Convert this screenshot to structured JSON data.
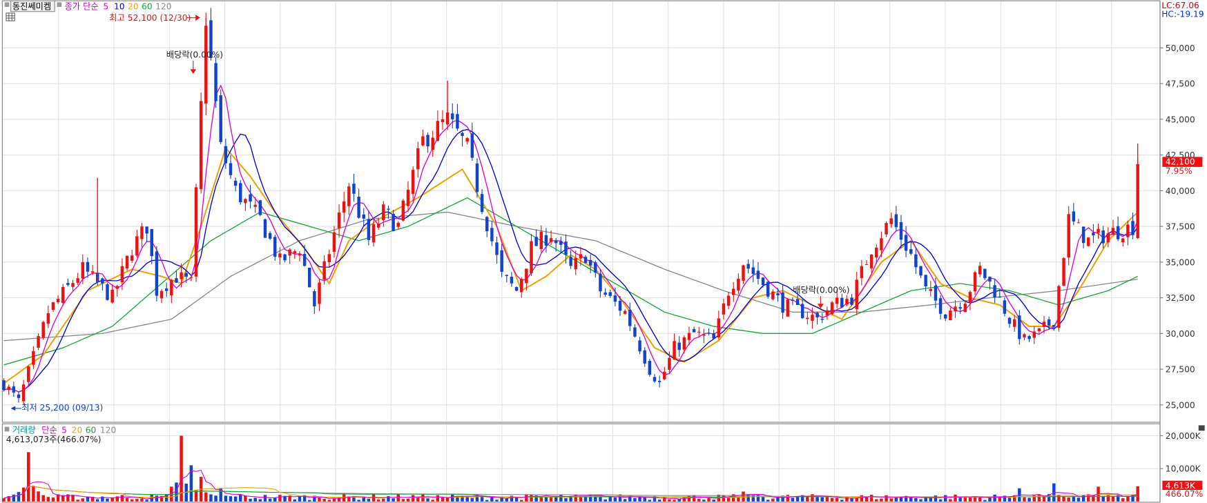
{
  "header": {
    "stock_name": "동진쎄미켐",
    "ma_title": "종가 단순",
    "ma_periods": [
      "5",
      "10",
      "20",
      "60",
      "120"
    ],
    "lc": "LC:67.06",
    "hc": "HC:-19.19"
  },
  "price": {
    "current": "42,100",
    "change": "7.95%",
    "high_label": "최고 52,100 (12/30)",
    "low_label": "최저 25,200 (09/13)",
    "dividend_label": "배당락(0.00%)"
  },
  "volume": {
    "title": "거래량",
    "ma_title": "단순",
    "ma_periods": [
      "5",
      "20",
      "60",
      "120"
    ],
    "current_text": "4,613,073주(466.07%)",
    "badge": "4,613K",
    "badge_pct": "466.07%"
  },
  "colors": {
    "up": "#ee1111",
    "down": "#1144cc",
    "ma5": "#dd00dd",
    "ma10": "#0000dd",
    "ma20": "#f0a000",
    "ma60": "#11aa33",
    "ma120": "#888888"
  },
  "chart_data": [
    {
      "type": "candlestick",
      "y_axis_labels": [
        "50,000",
        "47,500",
        "45,000",
        "42,500",
        "40,000",
        "37,500",
        "35,000",
        "32,500",
        "30,000",
        "27,500",
        "25,000"
      ],
      "y_values": [
        50000,
        47500,
        45000,
        42500,
        40000,
        37500,
        35000,
        32500,
        30000,
        27500,
        25000
      ],
      "ylim": [
        24000,
        52600
      ],
      "close_path": [
        [
          0,
          26500
        ],
        [
          3,
          25200
        ],
        [
          9,
          31500
        ],
        [
          16,
          34500
        ],
        [
          22,
          32500
        ],
        [
          26,
          36000
        ],
        [
          29,
          37500
        ],
        [
          31,
          33000
        ],
        [
          35,
          34000
        ],
        [
          38,
          33500
        ],
        [
          41,
          52100
        ],
        [
          44,
          43000
        ],
        [
          47,
          40000
        ],
        [
          52,
          38000
        ],
        [
          56,
          35000
        ],
        [
          60,
          36000
        ],
        [
          63,
          32000
        ],
        [
          67,
          37000
        ],
        [
          70,
          40500
        ],
        [
          74,
          36500
        ],
        [
          77,
          38500
        ],
        [
          80,
          37500
        ],
        [
          85,
          43500
        ],
        [
          90,
          45000
        ],
        [
          94,
          43000
        ],
        [
          97,
          39000
        ],
        [
          101,
          34000
        ],
        [
          104,
          33000
        ],
        [
          107,
          36000
        ],
        [
          111,
          37000
        ],
        [
          115,
          34500
        ],
        [
          118,
          35500
        ],
        [
          121,
          33000
        ],
        [
          126,
          31500
        ],
        [
          131,
          27500
        ],
        [
          133,
          26500
        ],
        [
          136,
          29000
        ],
        [
          140,
          30000
        ],
        [
          144,
          29500
        ],
        [
          147,
          33000
        ],
        [
          150,
          35000
        ],
        [
          154,
          33500
        ],
        [
          158,
          32000
        ],
        [
          162,
          31500
        ],
        [
          165,
          31000
        ],
        [
          168,
          32000
        ],
        [
          172,
          32500
        ],
        [
          176,
          36000
        ],
        [
          180,
          38000
        ],
        [
          184,
          35500
        ],
        [
          187,
          33000
        ],
        [
          191,
          31500
        ],
        [
          195,
          32500
        ],
        [
          198,
          34500
        ],
        [
          201,
          33000
        ],
        [
          204,
          31000
        ],
        [
          207,
          29500
        ],
        [
          210,
          30000
        ],
        [
          213,
          31000
        ],
        [
          216,
          38000
        ],
        [
          220,
          36500
        ],
        [
          224,
          37000
        ],
        [
          229,
          37500
        ],
        [
          230,
          42100
        ]
      ],
      "ma_paths": {
        "ma20": [
          [
            0,
            26500
          ],
          [
            8,
            28500
          ],
          [
            17,
            33000
          ],
          [
            26,
            34500
          ],
          [
            32,
            34000
          ],
          [
            36,
            33500
          ],
          [
            40,
            37500
          ],
          [
            45,
            43000
          ],
          [
            50,
            41000
          ],
          [
            55,
            38500
          ],
          [
            62,
            35500
          ],
          [
            66,
            33500
          ],
          [
            70,
            36500
          ],
          [
            76,
            38000
          ],
          [
            84,
            39500
          ],
          [
            93,
            41500
          ],
          [
            100,
            37500
          ],
          [
            105,
            33000
          ],
          [
            110,
            34000
          ],
          [
            115,
            35500
          ],
          [
            120,
            34500
          ],
          [
            125,
            32500
          ],
          [
            132,
            29000
          ],
          [
            138,
            28000
          ],
          [
            145,
            29500
          ],
          [
            152,
            32500
          ],
          [
            158,
            33000
          ],
          [
            164,
            32000
          ],
          [
            170,
            31000
          ],
          [
            178,
            35000
          ],
          [
            184,
            36500
          ],
          [
            190,
            33500
          ],
          [
            196,
            32500
          ],
          [
            202,
            32000
          ],
          [
            208,
            30500
          ],
          [
            213,
            30500
          ],
          [
            218,
            33000
          ],
          [
            224,
            36500
          ],
          [
            230,
            38500
          ]
        ],
        "ma60": [
          [
            0,
            27800
          ],
          [
            12,
            29000
          ],
          [
            22,
            30500
          ],
          [
            32,
            33500
          ],
          [
            42,
            36500
          ],
          [
            52,
            38500
          ],
          [
            62,
            37500
          ],
          [
            72,
            36500
          ],
          [
            82,
            37500
          ],
          [
            94,
            39500
          ],
          [
            104,
            37500
          ],
          [
            114,
            35500
          ],
          [
            124,
            33500
          ],
          [
            134,
            31500
          ],
          [
            144,
            30500
          ],
          [
            154,
            30000
          ],
          [
            164,
            30000
          ],
          [
            174,
            31500
          ],
          [
            184,
            33000
          ],
          [
            194,
            33500
          ],
          [
            204,
            33000
          ],
          [
            214,
            32000
          ],
          [
            224,
            33000
          ],
          [
            230,
            34000
          ]
        ],
        "ma120": [
          [
            0,
            29500
          ],
          [
            20,
            30000
          ],
          [
            34,
            31000
          ],
          [
            46,
            34000
          ],
          [
            60,
            36500
          ],
          [
            74,
            38000
          ],
          [
            90,
            38500
          ],
          [
            104,
            37500
          ],
          [
            120,
            36500
          ],
          [
            134,
            34500
          ],
          [
            146,
            33000
          ],
          [
            160,
            31500
          ],
          [
            174,
            31500
          ],
          [
            188,
            32000
          ],
          [
            200,
            32500
          ],
          [
            214,
            33000
          ],
          [
            230,
            33800
          ]
        ]
      }
    },
    {
      "type": "bar",
      "y_axis_labels": [
        "20,000K",
        "10,000K"
      ],
      "y_values": [
        20000,
        10000
      ],
      "ylim": [
        0,
        22000
      ],
      "spikes": [
        [
          5,
          15000
        ],
        [
          36,
          20000
        ],
        [
          38,
          11000
        ],
        [
          40,
          7500
        ],
        [
          44,
          4000
        ],
        [
          150,
          3000
        ],
        [
          206,
          4000
        ],
        [
          213,
          5500
        ],
        [
          222,
          4500
        ],
        [
          230,
          4613
        ]
      ],
      "base_volume_k": 1500
    }
  ]
}
